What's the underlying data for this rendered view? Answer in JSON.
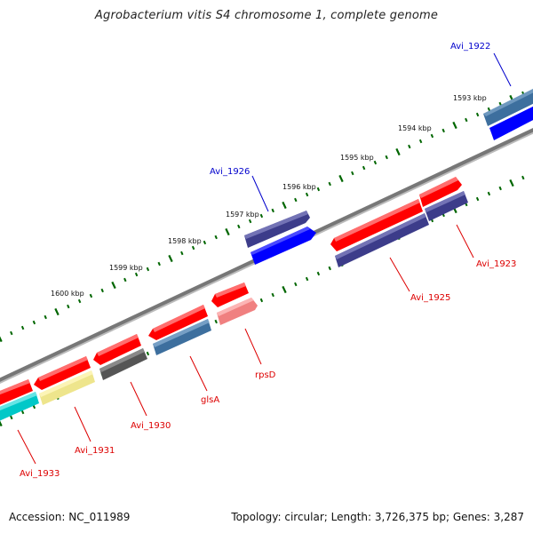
{
  "title": "Agrobacterium vitis S4 chromosome 1, complete genome",
  "footer": {
    "accession": "Accession: NC_011989",
    "summary": "Topology: circular; Length: 3,726,375 bp; Genes: 3,287"
  },
  "scale_labels": [
    "1593 kbp",
    "1594 kbp",
    "1595 kbp",
    "1596 kbp",
    "1597 kbp",
    "1598 kbp",
    "1599 kbp",
    "1600 kbp"
  ],
  "gene_labels": [
    "Avi_1922",
    "Avi_1926",
    "Avi_1923",
    "Avi_1925",
    "rpsD",
    "glsA",
    "Avi_1930",
    "Avi_1931",
    "Avi_1933"
  ],
  "colors": {
    "label_blue": "#0000cc",
    "label_red": "#dd0000",
    "backbone": "#777777",
    "tick": "#006600",
    "red": "#ff0000",
    "dark_blue": "#3c3c8a",
    "blue": "#0000ff",
    "steel": "#3d6f9e",
    "pink": "#f08080",
    "gray": "#555555",
    "yellow": "#eee58c",
    "cyan": "#00c8c8"
  }
}
